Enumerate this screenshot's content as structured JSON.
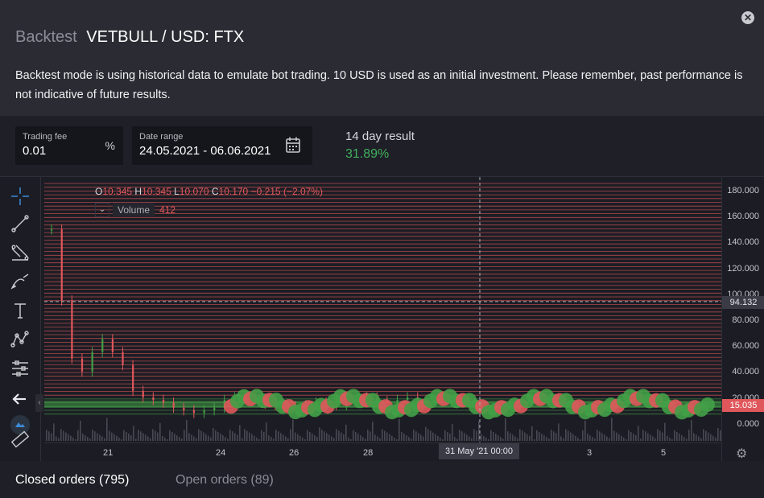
{
  "header": {
    "title_muted": "Backtest",
    "title_main": "VETBULL / USD: FTX",
    "close_label": "✕",
    "description": "Backtest mode is using historical data to emulate bot trading. 10 USD is used as an initial investment. Please remember, past performance is not indicative of future results."
  },
  "fields": {
    "fee_label": "Trading fee",
    "fee_value": "0.01",
    "fee_suffix": "%",
    "range_label": "Date range",
    "range_value": "24.05.2021 - 06.06.2021"
  },
  "result": {
    "label": "14 day result",
    "value": "31.89%",
    "color": "#43b05c"
  },
  "chart": {
    "ohlc": {
      "o_label": "O",
      "o": "10.345",
      "h_label": "H",
      "h": "10.345",
      "l_label": "L",
      "l": "10.070",
      "c_label": "C",
      "c": "10.170",
      "change": "−0.215 (−2.07%)"
    },
    "volume_label": "Volume",
    "volume_value": "412",
    "volume_toggle": "⌄",
    "y_ticks": [
      "180.000",
      "160.000",
      "140.000",
      "120.000",
      "100.000",
      "80.000",
      "60.000",
      "40.000",
      "20.000",
      "0.000"
    ],
    "crosshair_price": "94.132",
    "last_price": "15.035",
    "x_ticks": [
      "21",
      "24",
      "26",
      "28",
      "3",
      "5"
    ],
    "crosshair_time": "31 May '21   00:00",
    "up_color": "#43a047",
    "down_color": "#e0575b"
  },
  "chart_data": {
    "type": "candlestick",
    "title": "VETBULL / USD: FTX",
    "ylim": [
      0,
      180
    ],
    "x_ticks": [
      "21",
      "24",
      "26",
      "28",
      "3",
      "5"
    ],
    "approx_close_series": [
      150,
      95,
      50,
      40,
      55,
      65,
      55,
      45,
      25,
      20,
      18,
      16,
      12,
      10,
      8,
      10,
      12,
      18,
      20,
      22,
      19,
      15,
      14,
      13,
      12,
      14,
      16,
      15,
      14,
      16,
      18,
      20,
      17,
      16,
      18,
      20,
      15,
      15
    ]
  },
  "tabs": {
    "closed": "Closed orders (795)",
    "open": "Open orders (89)"
  },
  "toolbar": {
    "collapse": "‹"
  }
}
